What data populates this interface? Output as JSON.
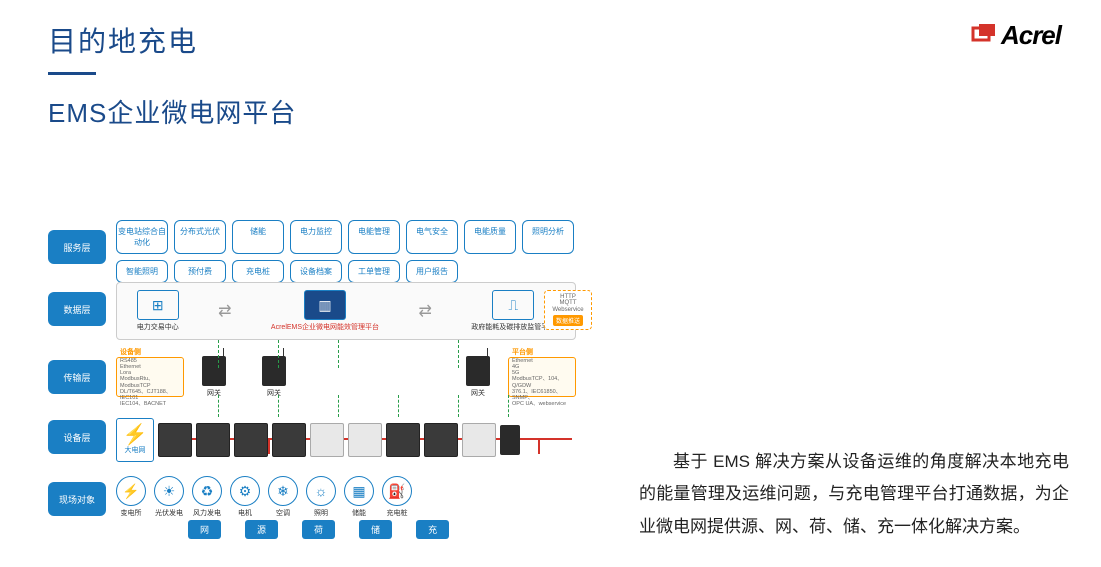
{
  "header": {
    "main_title": "目的地充电",
    "sub_title": "EMS企业微电网平台",
    "logo_text": "Acrel",
    "logo_color": "#d4332a"
  },
  "layers": {
    "biz": "服务层",
    "data": "数据层",
    "trans": "传输层",
    "dev": "设备层",
    "obj": "现场对象"
  },
  "biz_items": [
    "变电站综合自动化",
    "分布式光伏",
    "储能",
    "电力监控",
    "电能管理",
    "电气安全",
    "电能质量",
    "照明分析",
    "智能照明",
    "预付费",
    "充电桩",
    "设备档案",
    "工单管理",
    "用户报告"
  ],
  "platforms": {
    "left": {
      "label": "电力交易中心",
      "icon": "⊞"
    },
    "center": {
      "label": "AcrelEMS企业微电网能效管理平台",
      "icon": "▥"
    },
    "right": {
      "label": "政府能耗及碳排放监管平台",
      "icon": "⎍"
    }
  },
  "cloud": {
    "protocols": "HTTP\nMQTT\nWebservice",
    "btn": "数据推送"
  },
  "protocol_left": {
    "title": "设备侧",
    "lines": "RS485\nEthernet\nLora\nModbusRtu、ModbusTCP\nDL/T645、CJT188、IEC101\nIEC104、BACNET"
  },
  "protocol_right": {
    "title": "平台侧",
    "lines": "Ethernet\n4G\n5G\nModbusTCP、104、Q/GDW\n376.1、IEC61850、SNMP、\nOPC UA、webservice"
  },
  "gateway_label": "网关",
  "grid_label": "大电网",
  "objects": [
    {
      "icon": "⚡",
      "label": "变电所"
    },
    {
      "icon": "☀",
      "label": "光伏发电"
    },
    {
      "icon": "♻",
      "label": "风力发电"
    },
    {
      "icon": "⚙",
      "label": "电机"
    },
    {
      "icon": "❄",
      "label": "空调"
    },
    {
      "icon": "☼",
      "label": "照明"
    },
    {
      "icon": "▦",
      "label": "储能"
    },
    {
      "icon": "⛽",
      "label": "充电桩"
    }
  ],
  "categories": [
    "网",
    "源",
    "荷",
    "储",
    "充"
  ],
  "description": "基于 EMS 解决方案从设备运维的角度解决本地充电的能量管理及运维问题，与充电管理平台打通数据，为企业微电网提供源、网、荷、储、充一体化解决方案。",
  "colors": {
    "primary": "#1a4a8a",
    "accent": "#1a7fc4",
    "red": "#d4332a",
    "orange": "#f90",
    "green": "#2a9d4a"
  }
}
